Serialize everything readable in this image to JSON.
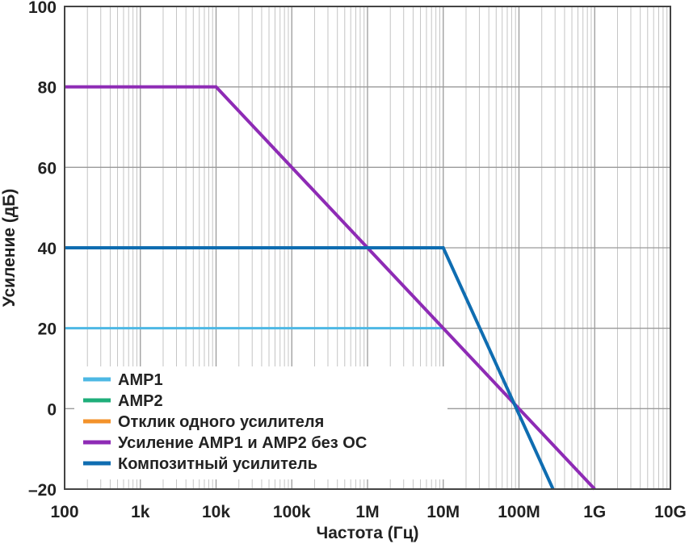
{
  "chart_data": {
    "type": "line",
    "xlabel": "Частота (Гц)",
    "ylabel": "Усиление (дБ)",
    "x_scale": "log",
    "xlim": [
      100,
      10000000000
    ],
    "ylim": [
      -20,
      100
    ],
    "x_tick_values": [
      100,
      1000,
      10000,
      100000,
      1000000,
      10000000,
      100000000,
      1000000000,
      10000000000
    ],
    "x_tick_labels": [
      "100",
      "1k",
      "10k",
      "100k",
      "1M",
      "10M",
      "100M",
      "1G",
      "10G"
    ],
    "y_ticks": [
      -20,
      0,
      20,
      40,
      60,
      80,
      100
    ],
    "y_tick_labels": [
      "–20",
      "0",
      "20",
      "40",
      "60",
      "80",
      "100"
    ],
    "grid": true,
    "legend_position": "bottom-left",
    "series": [
      {
        "name": "AMP1",
        "color": "#4db8e4",
        "width": 3,
        "points": [
          [
            100,
            20
          ],
          [
            10000000,
            20
          ],
          [
            1000000000,
            -20
          ]
        ]
      },
      {
        "name": "AMP2",
        "color": "#1fae7a",
        "width": 3,
        "points": [
          [
            100,
            40
          ],
          [
            1000000,
            40
          ],
          [
            1000000000,
            -20
          ]
        ]
      },
      {
        "name": "Отклик одного усилителя",
        "color": "#f3922a",
        "width": 3,
        "points": [
          [
            100,
            40
          ],
          [
            1000000,
            40
          ],
          [
            1000000000,
            -20
          ]
        ]
      },
      {
        "name": "Усиление AMP1 и AMP2 без ОС",
        "color": "#8e2bb5",
        "width": 4,
        "points": [
          [
            100,
            80
          ],
          [
            10000,
            80
          ],
          [
            1000000000,
            -20
          ]
        ]
      },
      {
        "name": "Композитный усилитель",
        "color": "#0f6db1",
        "width": 4,
        "points": [
          [
            100,
            40
          ],
          [
            10000000,
            40
          ],
          [
            281838293,
            -20
          ]
        ]
      }
    ]
  }
}
